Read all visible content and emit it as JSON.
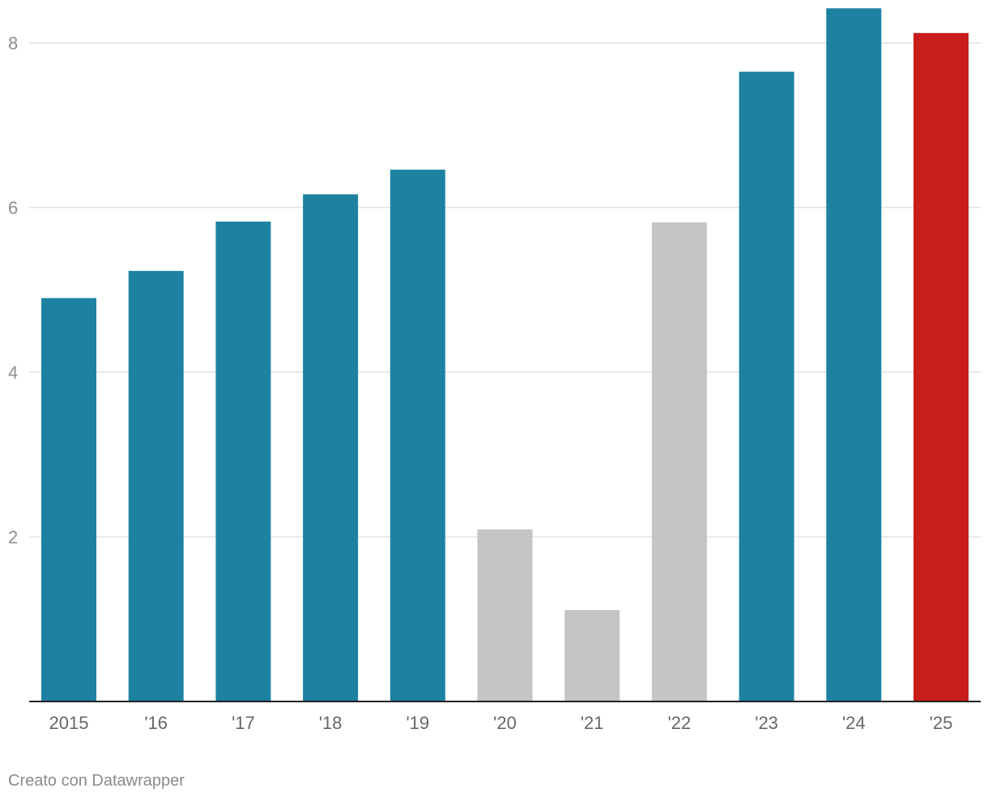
{
  "chart_data": {
    "type": "bar",
    "categories": [
      "2015",
      "'16",
      "'17",
      "'18",
      "'19",
      "'20",
      "'21",
      "'22",
      "'23",
      "'24",
      "'25"
    ],
    "values": [
      4.9,
      5.23,
      5.83,
      6.16,
      6.46,
      2.09,
      1.11,
      5.82,
      7.65,
      8.42,
      8.12
    ],
    "highlight": [
      "default",
      "default",
      "default",
      "default",
      "default",
      "muted",
      "muted",
      "muted",
      "default",
      "default",
      "current"
    ],
    "colors": {
      "default": "#1d82a2",
      "muted": "#c4c4c4",
      "current": "#c91c1c",
      "gridline": "#e1e1e1",
      "axis": "#222222",
      "tick_text": "#8f8f8f",
      "category_text": "#666666"
    },
    "yticks": [
      2,
      4,
      6,
      8
    ],
    "ylim": [
      0,
      8.5
    ],
    "grid": true,
    "title": "",
    "xlabel": "",
    "ylabel": ""
  },
  "credit": "Creato con Datawrapper"
}
